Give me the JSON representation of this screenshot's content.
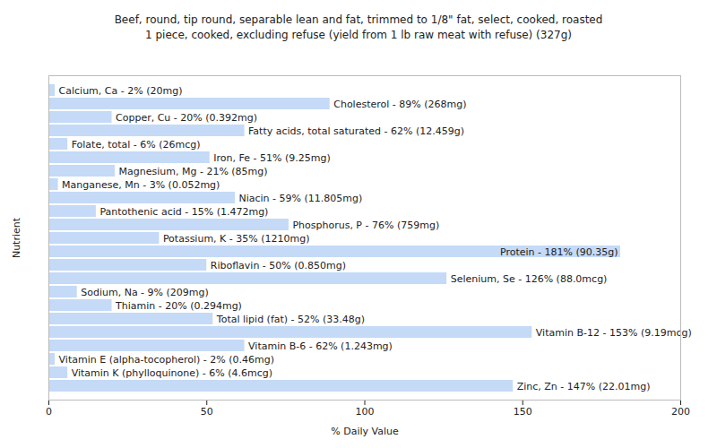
{
  "chart_data": {
    "type": "bar",
    "orientation": "horizontal",
    "title": "Beef, round, tip round, separable lean and fat, trimmed to 1/8\" fat, select, cooked, roasted",
    "subtitle": "1 piece, cooked, excluding refuse (yield from 1 lb raw meat with refuse) (327g)",
    "x_label": "% Daily Value",
    "y_label": "Nutrient",
    "categories": [
      "Calcium, Ca",
      "Cholesterol",
      "Copper, Cu",
      "Fatty acids, total saturated",
      "Folate, total",
      "Iron, Fe",
      "Magnesium, Mg",
      "Manganese, Mn",
      "Niacin",
      "Pantothenic acid",
      "Phosphorus, P",
      "Potassium, K",
      "Protein",
      "Riboflavin",
      "Selenium, Se",
      "Sodium, Na",
      "Thiamin",
      "Total lipid (fat)",
      "Vitamin B-12",
      "Vitamin B-6",
      "Vitamin E (alpha-tocopherol)",
      "Vitamin K (phylloquinone)",
      "Zinc, Zn"
    ],
    "values": [
      2,
      89,
      20,
      62,
      6,
      51,
      21,
      3,
      59,
      15,
      76,
      35,
      181,
      50,
      126,
      9,
      20,
      52,
      153,
      62,
      2,
      6,
      147
    ],
    "value_labels": [
      "Calcium, Ca - 2% (20mg)",
      "Cholesterol - 89% (268mg)",
      "Copper, Cu - 20% (0.392mg)",
      "Fatty acids, total saturated - 62% (12.459g)",
      "Folate, total - 6% (26mcg)",
      "Iron, Fe - 51% (9.25mg)",
      "Magnesium, Mg - 21% (85mg)",
      "Manganese, Mn - 3% (0.052mg)",
      "Niacin - 59% (11.805mg)",
      "Pantothenic acid - 15% (1.472mg)",
      "Phosphorus, P - 76% (759mg)",
      "Potassium, K - 35% (1210mg)",
      "Protein - 181% (90.35g)",
      "Riboflavin - 50% (0.850mg)",
      "Selenium, Se - 126% (88.0mcg)",
      "Sodium, Na - 9% (209mg)",
      "Thiamin - 20% (0.294mg)",
      "Total lipid (fat) - 52% (33.48g)",
      "Vitamin B-12 - 153% (9.19mcg)",
      "Vitamin B-6 - 62% (1.243mg)",
      "Vitamin E (alpha-tocopherol) - 2% (0.46mg)",
      "Vitamin K (phylloquinone) - 6% (4.6mcg)",
      "Zinc, Zn - 147% (22.01mg)"
    ],
    "data_labels": true,
    "color": "#c4daf6",
    "xlim": [
      0,
      200
    ],
    "xticks": [
      0,
      50,
      100,
      150,
      200
    ],
    "grid": false,
    "tick_labels": "x"
  }
}
